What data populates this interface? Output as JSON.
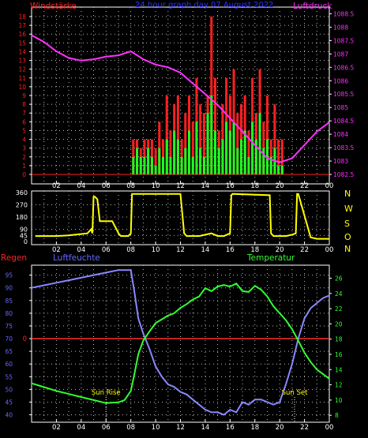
{
  "header": {
    "left_label": "Windstärke",
    "title": "24 hour graph day  07 August 2022",
    "right_label": "Luftdruck"
  },
  "compass": [
    "N",
    "W",
    "S",
    "O",
    "N"
  ],
  "bottom_labels": {
    "rain": "Regen",
    "humidity": "Luftfeuchte",
    "temperature": "Temperatur",
    "sun_rise": "Sun Rise",
    "sun_set": "Sun Set"
  },
  "colors": {
    "wind_gust": "#ff2020",
    "wind_avg": "#20ff20",
    "pressure": "#ff30ff",
    "direction": "#ffff00",
    "humidity": "#8888ff",
    "temperature": "#30ff30",
    "rain": "#ff3030",
    "axis_left": "#ff2020",
    "axis_right": "#ff30ff",
    "hum_axis": "#6666ff",
    "temp_axis": "#30ff30"
  },
  "chart_data": [
    {
      "type": "bar",
      "name_left": "Windstärke",
      "name_right": "Luftdruck",
      "x_tick_labels": [
        "02",
        "04",
        "06",
        "08",
        "10",
        "12",
        "14",
        "16",
        "18",
        "20",
        "22",
        "00"
      ],
      "x_range": [
        0,
        24
      ],
      "y_left_ticks": [
        "0",
        "1",
        "2",
        "3",
        "4",
        "5",
        "6",
        "7",
        "8",
        "9",
        "10",
        "11",
        "12",
        "13",
        "14",
        "15",
        "16",
        "17",
        "18"
      ],
      "y_left_range": [
        0,
        18
      ],
      "y_right_ticks": [
        "1082.5",
        "1083",
        "1083.5",
        "1084",
        "1084.5",
        "1085",
        "1085.5",
        "1086",
        "1086.5",
        "1087",
        "1087.5",
        "1088",
        "1088.5"
      ],
      "y_right_range": [
        1082.5,
        1088.75
      ],
      "series": [
        {
          "name": "Luftdruck",
          "kind": "line",
          "x": [
            0,
            1,
            2,
            3,
            4,
            5,
            6,
            7,
            8,
            9,
            10,
            11,
            12,
            13,
            14,
            15,
            16,
            17,
            18,
            19,
            20,
            21,
            22,
            23,
            24
          ],
          "y": [
            1087.7,
            1087.45,
            1087.1,
            1086.85,
            1086.75,
            1086.8,
            1086.9,
            1086.95,
            1087.1,
            1086.8,
            1086.6,
            1086.5,
            1086.3,
            1085.9,
            1085.5,
            1085.1,
            1084.6,
            1084.1,
            1083.6,
            1083.1,
            1082.95,
            1083.1,
            1083.6,
            1084.1,
            1084.45
          ]
        },
        {
          "name": "gust",
          "kind": "bars",
          "x": [
            8.2,
            8.5,
            8.8,
            9.1,
            9.4,
            9.7,
            10.0,
            10.3,
            10.6,
            10.9,
            11.2,
            11.5,
            11.8,
            12.1,
            12.4,
            12.7,
            13.0,
            13.3,
            13.6,
            13.9,
            14.2,
            14.5,
            14.8,
            15.1,
            15.4,
            15.7,
            16.0,
            16.3,
            16.6,
            16.9,
            17.2,
            17.5,
            17.8,
            18.1,
            18.4,
            18.7,
            19.0,
            19.3,
            19.6,
            19.9,
            20.2
          ],
          "y": [
            4,
            4,
            3,
            4,
            4,
            4,
            3,
            6,
            4,
            9,
            5,
            8,
            9,
            4,
            7,
            9,
            6,
            11,
            8,
            7,
            9,
            18,
            11,
            5,
            8,
            11,
            9,
            12,
            7,
            8,
            9,
            5,
            11,
            7,
            12,
            6,
            9,
            4,
            8,
            4,
            4
          ]
        },
        {
          "name": "avg",
          "kind": "bars",
          "x": [
            8.2,
            8.5,
            8.8,
            9.1,
            9.4,
            9.7,
            10.0,
            10.3,
            10.6,
            10.9,
            11.2,
            11.5,
            11.8,
            12.1,
            12.4,
            12.7,
            13.0,
            13.3,
            13.6,
            13.9,
            14.2,
            14.5,
            14.8,
            15.1,
            15.4,
            15.7,
            16.0,
            16.3,
            16.6,
            16.9,
            17.2,
            17.5,
            17.8,
            18.1,
            18.4,
            18.7,
            19.0,
            19.3,
            19.6,
            19.9,
            20.2
          ],
          "y": [
            2,
            3,
            2,
            2,
            3,
            2,
            1,
            3,
            2,
            4,
            2,
            5,
            4,
            2,
            3,
            5,
            2,
            6,
            3,
            2,
            7,
            9,
            5,
            3,
            4,
            6,
            5,
            6,
            3,
            4,
            5,
            2,
            6,
            4,
            7,
            3,
            4,
            2,
            3,
            1,
            1
          ]
        }
      ]
    },
    {
      "type": "line",
      "name": "Windrichtung",
      "x_tick_labels": [
        "02",
        "04",
        "06",
        "08",
        "10",
        "12",
        "14",
        "16",
        "18",
        "20",
        "22",
        "00"
      ],
      "x_range": [
        0,
        24
      ],
      "y_ticks": [
        "0",
        "45",
        "90",
        "180",
        "270",
        "360"
      ],
      "y_range": [
        0,
        360
      ],
      "series": [
        {
          "name": "Windrichtung",
          "x": [
            0.3,
            2,
            3,
            3.5,
            4.5,
            4.8,
            4.9,
            5.0,
            5.1,
            5.3,
            5.5,
            6.5,
            6.9,
            7.0,
            7.2,
            7.8,
            8.0,
            8.1,
            12.0,
            12.3,
            12.5,
            13.5,
            14.5,
            15.0,
            15.5,
            16.0,
            16.1,
            16.2,
            19.2,
            19.3,
            19.5,
            20.5,
            21.0,
            21.3,
            21.4,
            21.5,
            22.5,
            23,
            24
          ],
          "y": [
            40,
            40,
            45,
            50,
            60,
            90,
            60,
            330,
            330,
            310,
            150,
            150,
            80,
            60,
            40,
            40,
            60,
            350,
            350,
            60,
            40,
            40,
            60,
            40,
            40,
            60,
            340,
            350,
            340,
            60,
            40,
            40,
            50,
            60,
            350,
            350,
            30,
            20,
            20
          ]
        }
      ]
    },
    {
      "type": "line",
      "x_tick_labels": [
        "02",
        "04",
        "06",
        "08",
        "10",
        "12",
        "14",
        "16",
        "18",
        "20",
        "22",
        "00"
      ],
      "x_range": [
        0,
        24
      ],
      "y_left_ticks": [
        "40",
        "45",
        "50",
        "55",
        "60",
        "65",
        "70",
        "75",
        "80",
        "85",
        "90",
        "95"
      ],
      "y_left_range": [
        38,
        98
      ],
      "y_right_ticks": [
        "8",
        "10",
        "12",
        "14",
        "16",
        "18",
        "20",
        "22",
        "24",
        "26"
      ],
      "y_right_range": [
        7.4,
        27.4
      ],
      "rain_value": 0,
      "series": [
        {
          "name": "Luftfeuchte",
          "x": [
            0,
            1,
            2,
            3,
            4,
            5,
            6,
            7,
            7.5,
            8,
            8.3,
            8.6,
            9,
            9.5,
            10,
            10.5,
            11,
            11.5,
            12,
            12.5,
            13,
            13.5,
            14,
            14.5,
            15,
            15.5,
            16,
            16.5,
            17,
            17.5,
            18,
            18.5,
            19,
            19.5,
            20,
            20.5,
            21,
            21.5,
            22,
            22.5,
            23,
            23.5,
            24
          ],
          "y": [
            90,
            91,
            92,
            93,
            94,
            95,
            96,
            97,
            97,
            97,
            88,
            78,
            72,
            66,
            59,
            55,
            52,
            51,
            49,
            48,
            46,
            44,
            42,
            41,
            41,
            40,
            42,
            41,
            45,
            44,
            46,
            46,
            45,
            44,
            45,
            52,
            60,
            70,
            78,
            82,
            84,
            86,
            87
          ]
        },
        {
          "name": "Temperatur",
          "x": [
            0,
            1,
            2,
            3,
            4,
            5,
            6,
            7,
            7.5,
            8,
            8.3,
            8.6,
            9,
            9.5,
            10,
            10.5,
            11,
            11.5,
            12,
            12.5,
            13,
            13.5,
            14,
            14.5,
            15,
            15.5,
            16,
            16.5,
            17,
            17.5,
            18,
            18.5,
            19,
            19.5,
            20,
            20.5,
            21,
            21.5,
            22,
            22.5,
            23,
            23.5,
            24
          ],
          "y": [
            12.2,
            11.7,
            11.2,
            10.8,
            10.4,
            10.0,
            9.6,
            9.7,
            10.0,
            11.2,
            13.5,
            16.0,
            17.8,
            19.0,
            20.1,
            20.6,
            21.1,
            21.4,
            22.1,
            22.6,
            23.2,
            23.6,
            24.7,
            24.3,
            24.9,
            25.1,
            24.9,
            25.3,
            24.3,
            24.2,
            25.0,
            24.5,
            23.6,
            22.3,
            21.4,
            20.5,
            19.3,
            17.8,
            16.2,
            15.0,
            14.0,
            13.4,
            12.8
          ]
        }
      ],
      "annotations": [
        {
          "label": "Sun Rise",
          "x": 6.0
        },
        {
          "label": "Sun Set",
          "x": 21.2
        }
      ]
    }
  ]
}
